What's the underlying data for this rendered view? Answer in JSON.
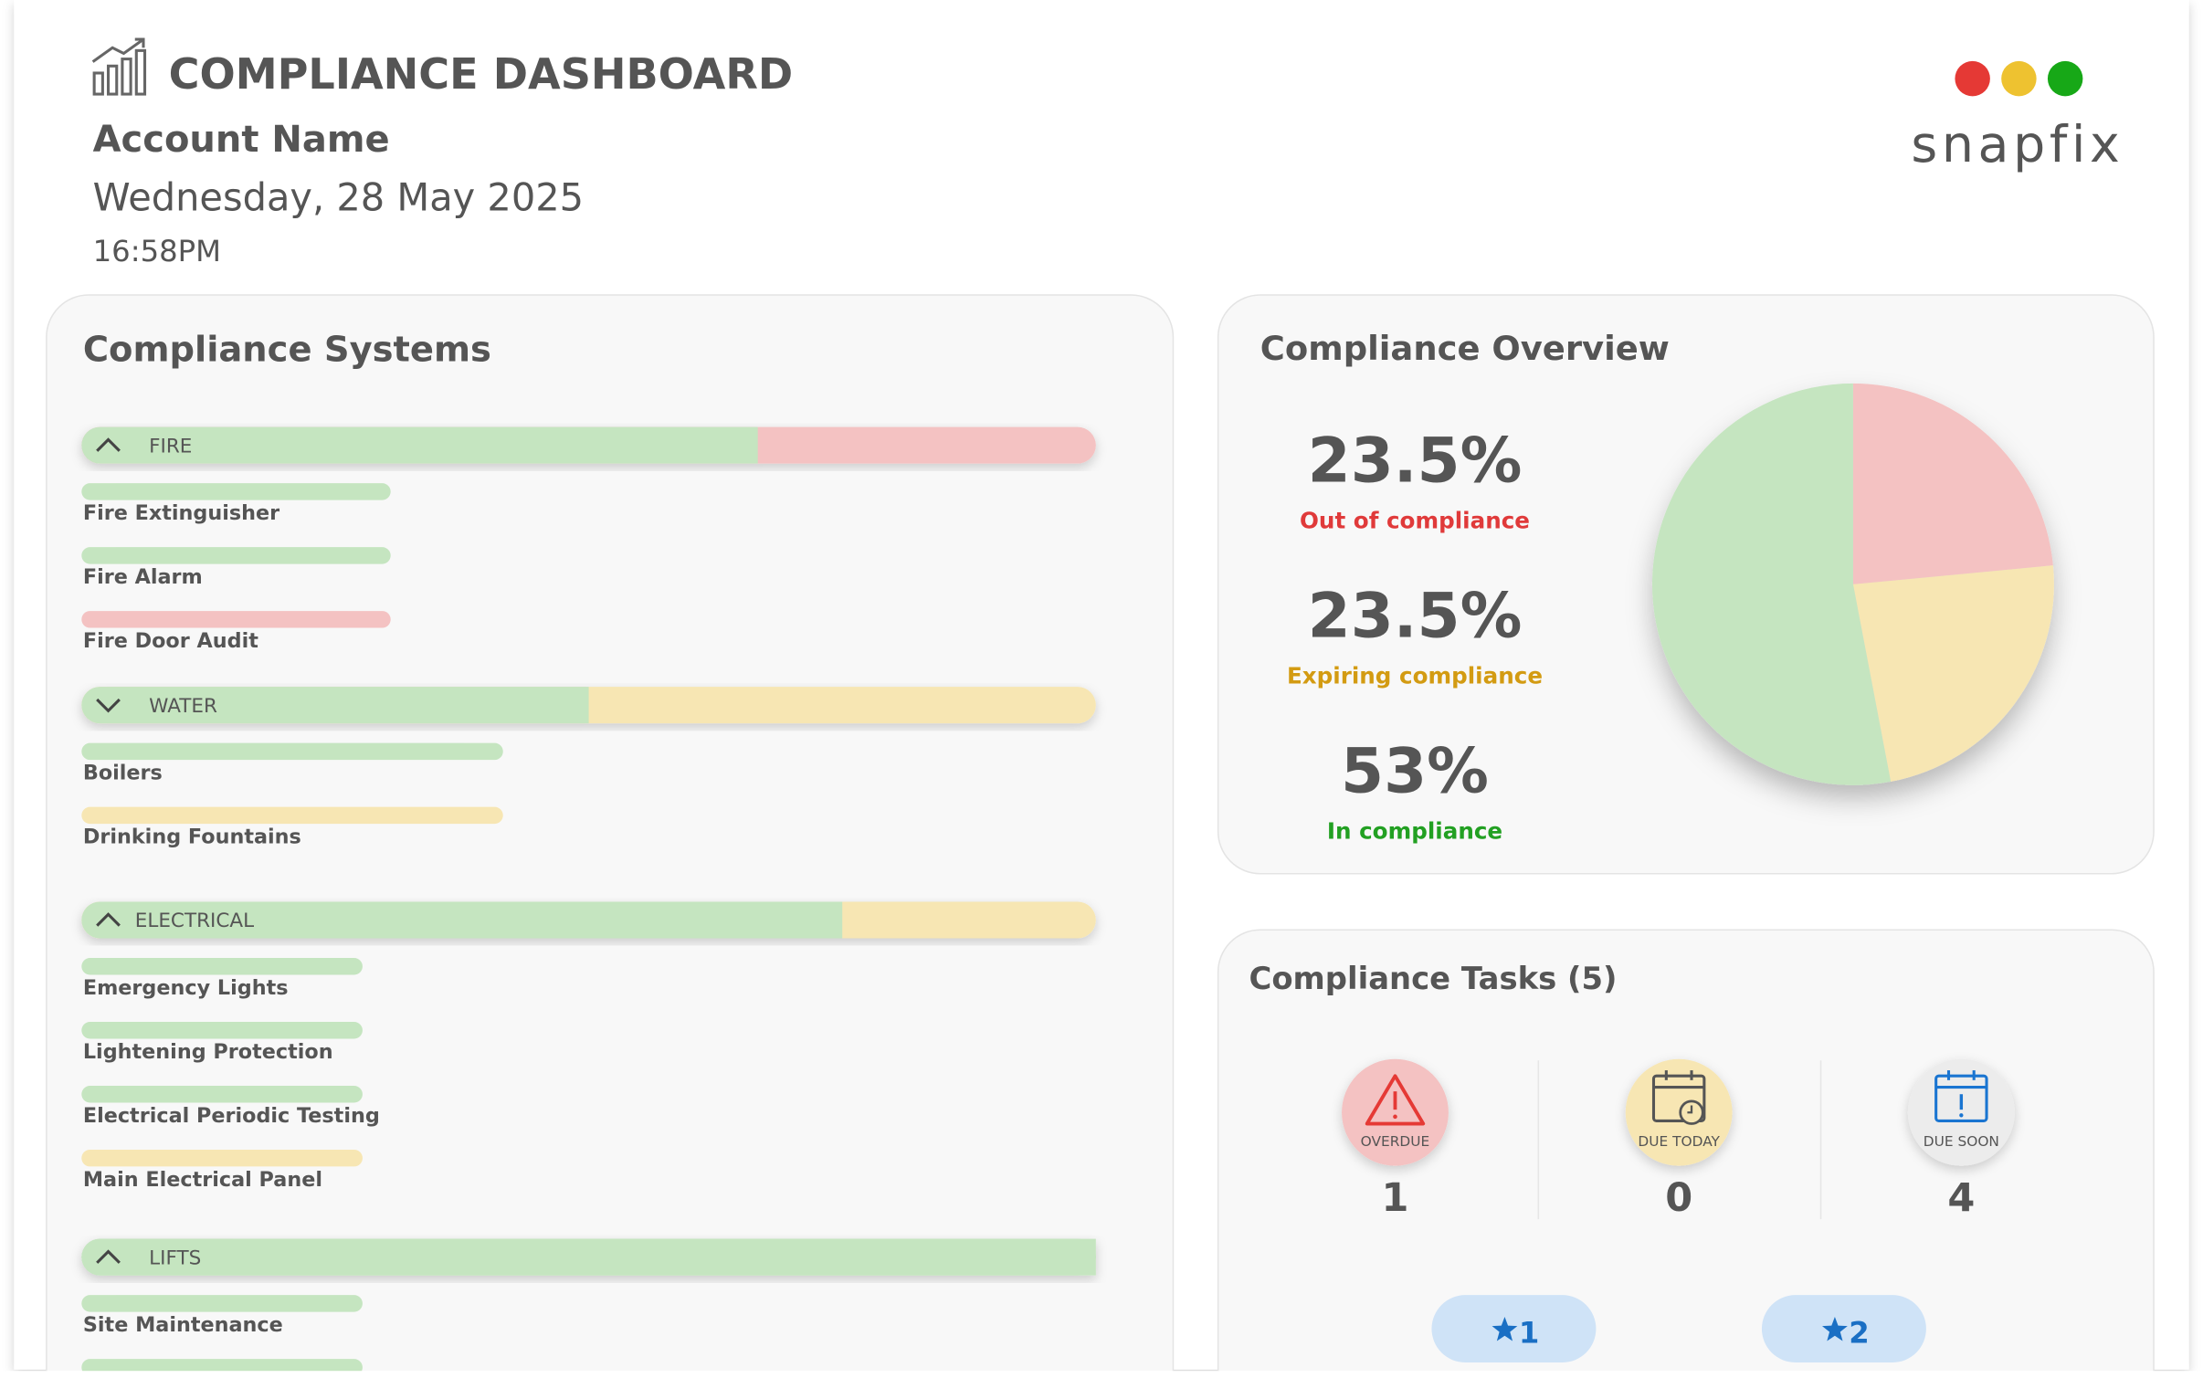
{
  "header": {
    "title": "COMPLIANCE DASHBOARD",
    "account": "Account Name",
    "date": "Wednesday, 28 May 2025",
    "time": "16:58PM",
    "logo": "snapfix"
  },
  "systems": {
    "title": "Compliance Systems",
    "groups": [
      {
        "name": "FIRE",
        "items": [
          {
            "name": "Fire Extinguisher",
            "color": "#c5e5c0"
          },
          {
            "name": "Fire Alarm",
            "color": "#c5e5c0"
          },
          {
            "name": "Fire Door Audit",
            "color": "#f4c2c2"
          }
        ]
      },
      {
        "name": "WATER",
        "items": [
          {
            "name": "Boilers",
            "color": "#c5e5c0"
          },
          {
            "name": "Drinking Fountains",
            "color": "#f7e6b3"
          }
        ]
      },
      {
        "name": "ELECTRICAL",
        "items": [
          {
            "name": "Emergency Lights",
            "color": "#c5e5c0"
          },
          {
            "name": "Lightening Protection",
            "color": "#c5e5c0"
          },
          {
            "name": "Electrical Periodic Testing",
            "color": "#c5e5c0"
          },
          {
            "name": "Main Electrical Panel",
            "color": "#f7e6b3"
          }
        ]
      },
      {
        "name": "LIFTS",
        "items": [
          {
            "name": "Site Maintenance",
            "color": "#c5e5c0"
          },
          {
            "name": null,
            "color": "#c5e5c0"
          }
        ]
      }
    ]
  },
  "overview": {
    "title": "Compliance Overview",
    "items": [
      {
        "value": 23.5,
        "value_label": "23.5%",
        "label": "Out of compliance",
        "color": "#f4c2c2",
        "text_color": "#e03a3a"
      },
      {
        "value": 23.5,
        "value_label": "23.5%",
        "label": "Expiring compliance",
        "color": "#f7e6b3",
        "text_color": "#d39b12"
      },
      {
        "value": 53,
        "value_label": "53%",
        "label": "In compliance",
        "color": "#c5e5c0",
        "text_color": "#22a022"
      }
    ]
  },
  "tasks": {
    "title": "Compliance Tasks (5)",
    "tiles": [
      {
        "label": "OVERDUE",
        "count": 1,
        "color": "#f4c2c2"
      },
      {
        "label": "DUE TODAY",
        "count": 0,
        "color": "#f7e6b3"
      },
      {
        "label": "DUE SOON",
        "count": 4,
        "color": "#ececec"
      }
    ],
    "buttons": [
      "1",
      "2"
    ]
  }
}
